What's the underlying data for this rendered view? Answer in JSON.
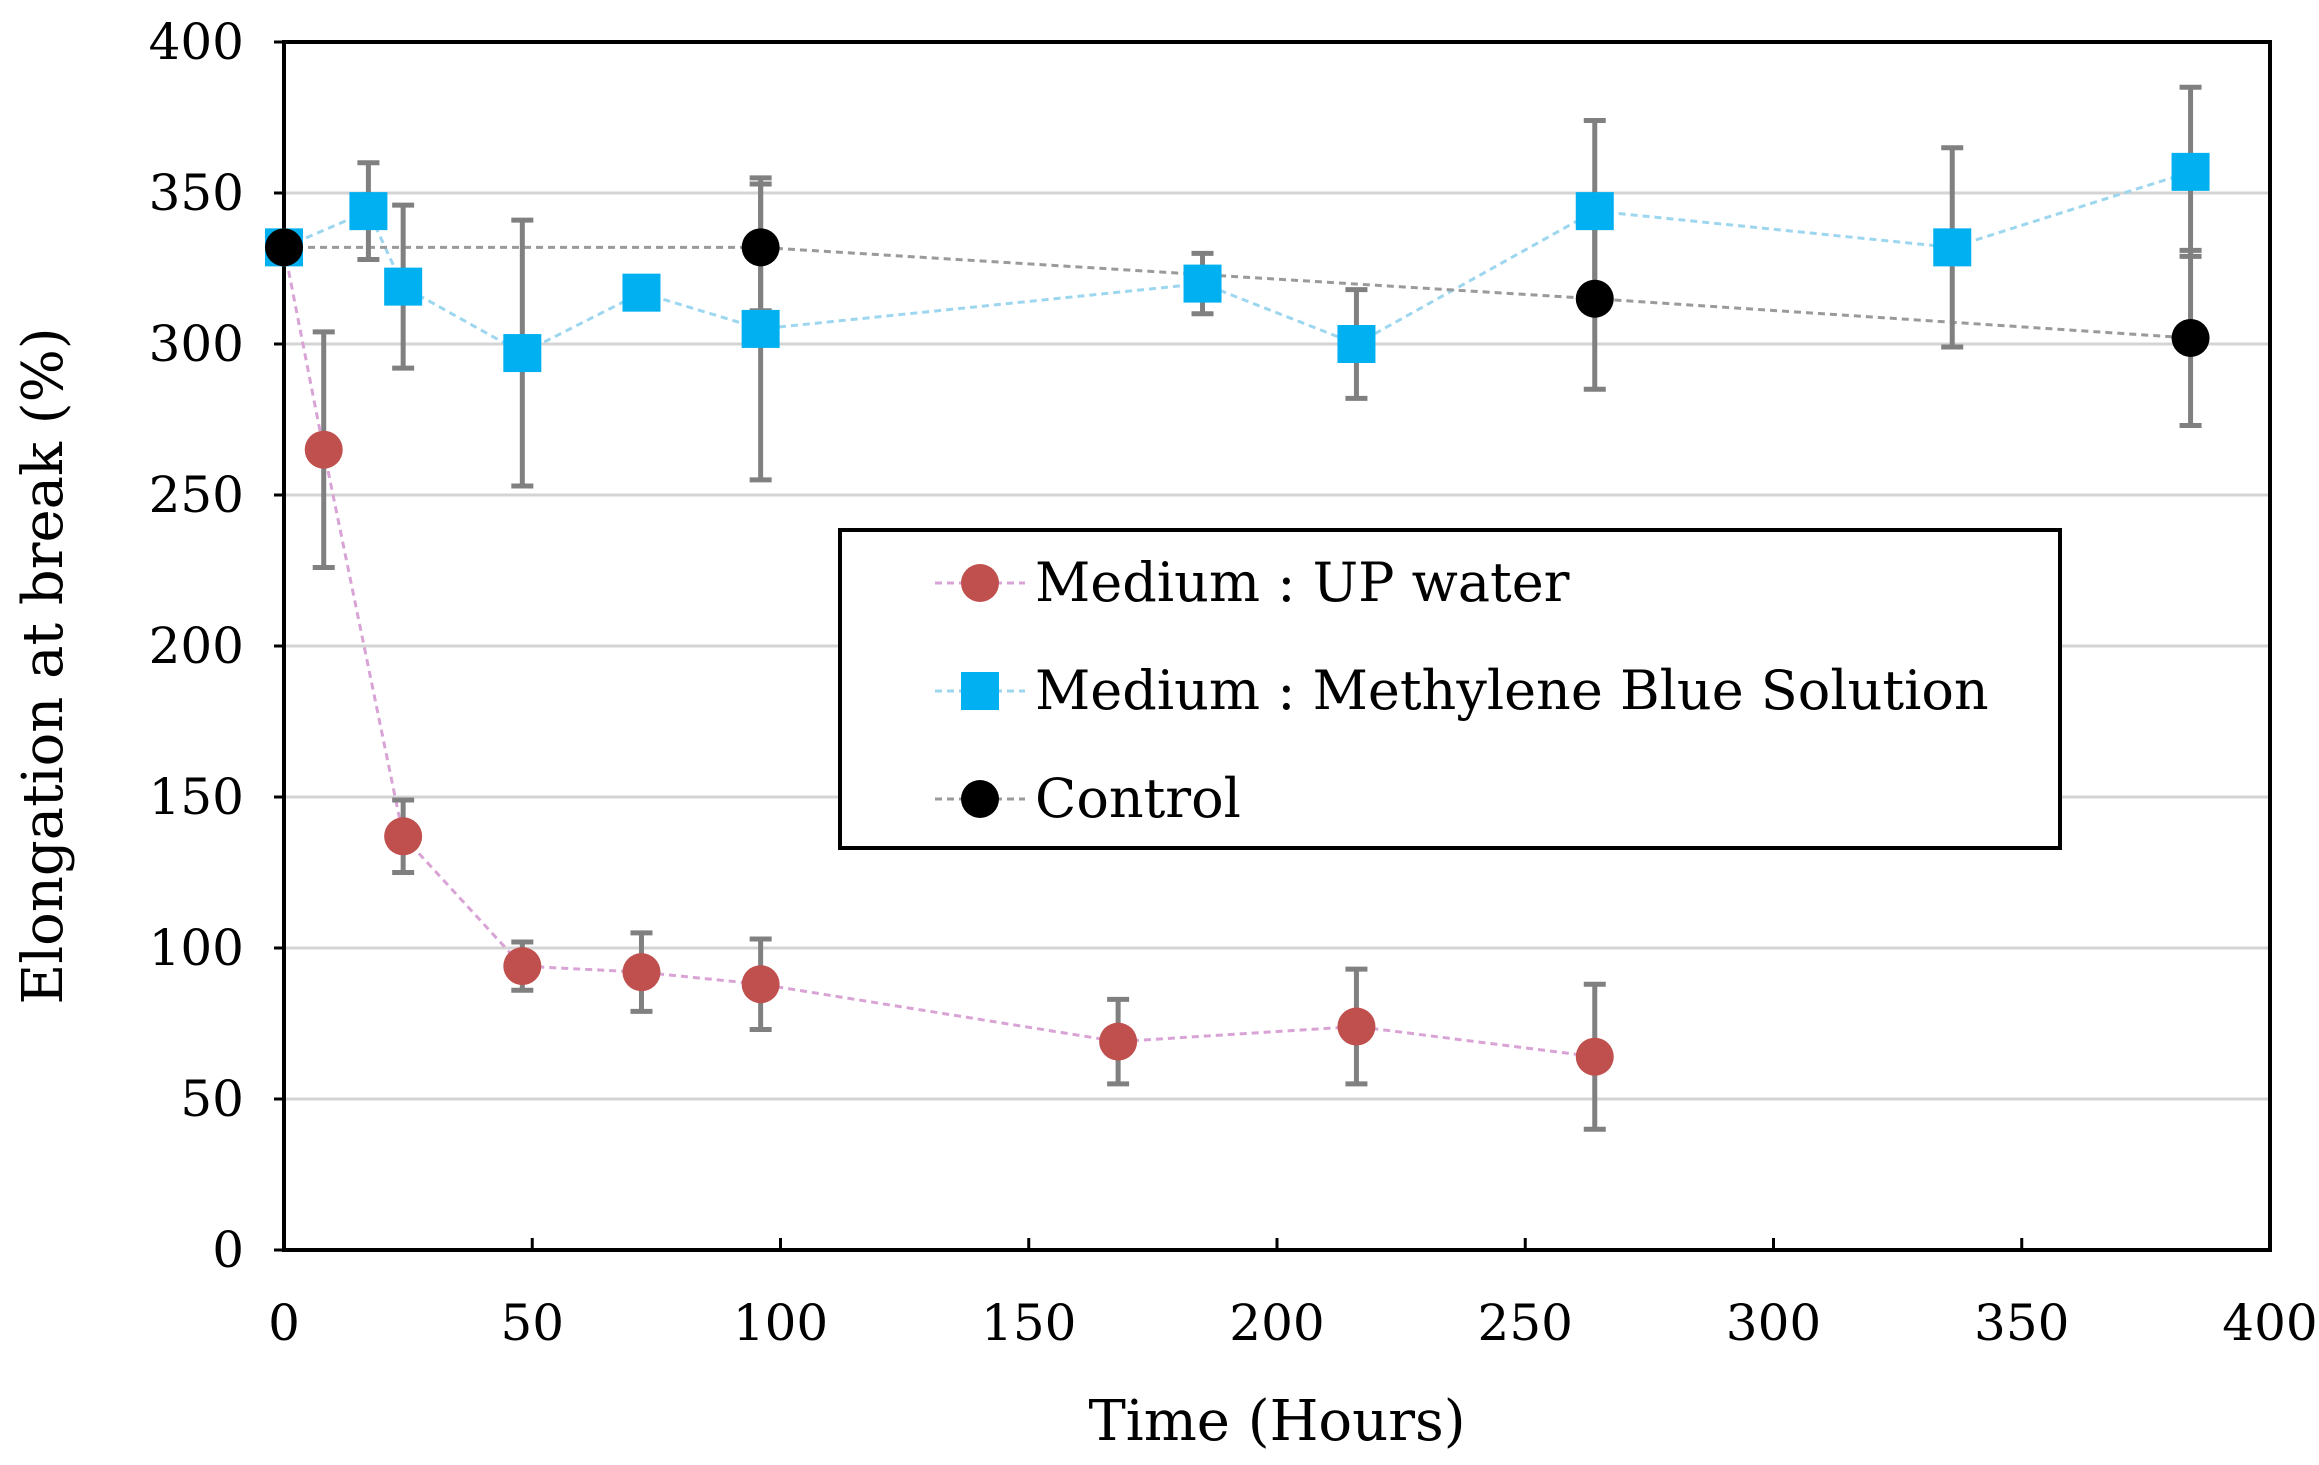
{
  "chart_data": {
    "type": "scatter",
    "title": "",
    "xlabel": "Time (Hours)",
    "ylabel": "Elongation at break (%)",
    "xlim": [
      0,
      400
    ],
    "ylim": [
      0,
      400
    ],
    "xticks": [
      "0",
      "50",
      "100",
      "150",
      "200",
      "250",
      "300",
      "350",
      "400"
    ],
    "yticks": [
      "0",
      "50",
      "100",
      "150",
      "200",
      "250",
      "300",
      "350",
      "400"
    ],
    "grid": true,
    "legend_position": "center-right",
    "series": [
      {
        "name": "Medium : UP water",
        "marker": "circle",
        "color": "#c0504d",
        "line_color": "#d9a3d6",
        "x": [
          0,
          8,
          24,
          48,
          72,
          96,
          168,
          216,
          264
        ],
        "y": [
          332,
          265,
          137,
          94,
          92,
          88,
          69,
          74,
          64
        ],
        "err": [
          0,
          39,
          12,
          8,
          13,
          15,
          14,
          19,
          24
        ]
      },
      {
        "name": "Medium : Methylene Blue Solution",
        "marker": "square",
        "color": "#00b0f0",
        "line_color": "#9dd6ef",
        "x": [
          0,
          17,
          24,
          48,
          72,
          96,
          185,
          216,
          264,
          336,
          384
        ],
        "y": [
          332,
          344,
          319,
          297,
          317,
          305,
          320,
          300,
          344,
          332,
          357
        ],
        "err": [
          0,
          16,
          27,
          44,
          0,
          50,
          10,
          18,
          30,
          33,
          28
        ]
      },
      {
        "name": "Control",
        "marker": "circle",
        "color": "#000000",
        "line_color": "#9a9a9a",
        "x": [
          0,
          96,
          264,
          384
        ],
        "y": [
          332,
          332,
          315,
          302
        ],
        "err": [
          0,
          21,
          30,
          29
        ]
      }
    ]
  }
}
